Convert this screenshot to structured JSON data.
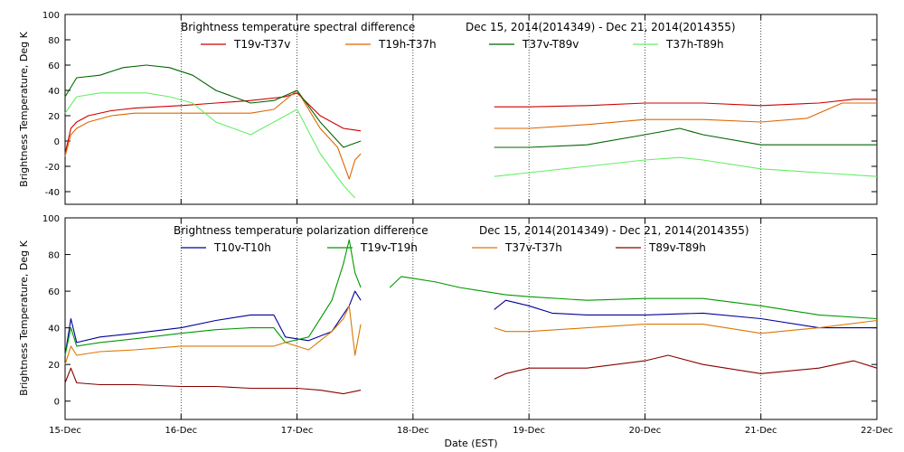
{
  "chart_data": [
    {
      "type": "line",
      "title": "Brightness temperature spectral difference",
      "date_range": "Dec 15, 2014(2014349) - Dec 21, 2014(2014355)",
      "ylabel": "Brightness Temperature, Deg K",
      "xlabel": "",
      "ylim": [
        -50,
        100
      ],
      "yticks": [
        -40,
        -20,
        0,
        20,
        40,
        60,
        80,
        100
      ],
      "xlim": [
        15,
        22
      ],
      "grid": "vertical dotted at day boundaries",
      "legend_placement": "top",
      "series": [
        {
          "name": "T19v-T37v",
          "color": "#cc0000",
          "x": [
            15.0,
            15.05,
            15.1,
            15.2,
            15.4,
            15.6,
            15.8,
            16.0,
            16.3,
            16.6,
            16.9,
            17.0,
            17.2,
            17.4,
            17.55
          ],
          "y": [
            -10,
            10,
            15,
            20,
            24,
            26,
            27,
            28,
            30,
            32,
            35,
            38,
            20,
            10,
            8
          ]
        },
        {
          "name": "T19h-T37h",
          "color": "#dd6600",
          "x": [
            15.0,
            15.05,
            15.1,
            15.2,
            15.4,
            15.6,
            15.8,
            16.0,
            16.3,
            16.6,
            16.8,
            17.0,
            17.2,
            17.35,
            17.45,
            17.5,
            17.55
          ],
          "y": [
            -12,
            5,
            10,
            15,
            20,
            22,
            22,
            22,
            22,
            22,
            25,
            40,
            10,
            -5,
            -30,
            -15,
            -10
          ]
        },
        {
          "name": "T37v-T89v",
          "color": "#006600",
          "x": [
            15.0,
            15.1,
            15.3,
            15.5,
            15.7,
            15.9,
            16.1,
            16.3,
            16.6,
            16.8,
            17.0,
            17.2,
            17.4,
            17.55
          ],
          "y": [
            35,
            50,
            52,
            58,
            60,
            58,
            52,
            40,
            30,
            32,
            40,
            15,
            -5,
            0
          ]
        },
        {
          "name": "T37h-T89h",
          "color": "#66ee66",
          "x": [
            15.0,
            15.1,
            15.3,
            15.5,
            15.7,
            15.9,
            16.1,
            16.3,
            16.6,
            16.8,
            17.0,
            17.2,
            17.4,
            17.5
          ],
          "y": [
            22,
            35,
            38,
            38,
            38,
            35,
            30,
            15,
            5,
            15,
            25,
            -10,
            -35,
            -45
          ]
        },
        {
          "name": "T19v-T37v",
          "color": "#cc0000",
          "x": [
            18.7,
            19.0,
            19.5,
            20.0,
            20.5,
            21.0,
            21.5,
            21.8,
            22.0
          ],
          "y": [
            27,
            27,
            28,
            30,
            30,
            28,
            30,
            33,
            33
          ]
        },
        {
          "name": "T19h-T37h",
          "color": "#dd6600",
          "x": [
            18.7,
            19.0,
            19.5,
            20.0,
            20.5,
            21.0,
            21.4,
            21.7,
            22.0
          ],
          "y": [
            10,
            10,
            13,
            17,
            17,
            15,
            18,
            30,
            30
          ]
        },
        {
          "name": "T37v-T89v",
          "color": "#006600",
          "x": [
            18.7,
            19.0,
            19.5,
            20.0,
            20.3,
            20.5,
            21.0,
            21.5,
            22.0
          ],
          "y": [
            -5,
            -5,
            -3,
            5,
            10,
            5,
            -3,
            -3,
            -3
          ]
        },
        {
          "name": "T37h-T89h",
          "color": "#66ee66",
          "x": [
            18.7,
            19.0,
            19.5,
            20.0,
            20.3,
            20.5,
            21.0,
            21.5,
            22.0
          ],
          "y": [
            -28,
            -25,
            -20,
            -15,
            -13,
            -15,
            -22,
            -25,
            -28
          ]
        }
      ]
    },
    {
      "type": "line",
      "title": "Brightness temperature polarization difference",
      "date_range": "Dec 15, 2014(2014349) - Dec 21, 2014(2014355)",
      "ylabel": "Brightness Temperature, Deg K",
      "xlabel": "Date (EST)",
      "ylim": [
        -10,
        100
      ],
      "yticks": [
        0,
        20,
        40,
        60,
        80,
        100
      ],
      "xlim": [
        15,
        22
      ],
      "xticks": [
        "15-Dec",
        "16-Dec",
        "17-Dec",
        "18-Dec",
        "19-Dec",
        "20-Dec",
        "21-Dec",
        "22-Dec"
      ],
      "grid": "vertical dotted at day boundaries",
      "legend_placement": "top",
      "series": [
        {
          "name": "T10v-T10h",
          "color": "#000099",
          "x": [
            15.0,
            15.05,
            15.1,
            15.3,
            15.6,
            16.0,
            16.3,
            16.6,
            16.8,
            16.9,
            17.1,
            17.3,
            17.45,
            17.5,
            17.55
          ],
          "y": [
            25,
            45,
            32,
            35,
            37,
            40,
            44,
            47,
            47,
            35,
            33,
            38,
            52,
            60,
            55
          ]
        },
        {
          "name": "T19v-T19h",
          "color": "#009900",
          "x": [
            15.0,
            15.05,
            15.1,
            15.3,
            15.6,
            16.0,
            16.3,
            16.6,
            16.8,
            16.9,
            17.1,
            17.3,
            17.4,
            17.45,
            17.5,
            17.55
          ],
          "y": [
            25,
            40,
            30,
            32,
            34,
            37,
            39,
            40,
            40,
            32,
            35,
            55,
            75,
            88,
            70,
            62
          ]
        },
        {
          "name": "T37v-T37h",
          "color": "#dd7700",
          "x": [
            15.0,
            15.05,
            15.1,
            15.3,
            15.6,
            16.0,
            16.3,
            16.6,
            16.8,
            16.9,
            17.1,
            17.3,
            17.4,
            17.45,
            17.5,
            17.55
          ],
          "y": [
            20,
            30,
            25,
            27,
            28,
            30,
            30,
            30,
            30,
            32,
            28,
            38,
            45,
            52,
            25,
            42
          ]
        },
        {
          "name": "T89v-T89h",
          "color": "#880000",
          "x": [
            15.0,
            15.05,
            15.1,
            15.3,
            15.6,
            16.0,
            16.3,
            16.6,
            16.8,
            17.0,
            17.2,
            17.4,
            17.55
          ],
          "y": [
            10,
            18,
            10,
            9,
            9,
            8,
            8,
            7,
            7,
            7,
            6,
            4,
            6
          ]
        },
        {
          "name": "T19v-T19h",
          "color": "#009900",
          "x": [
            17.8,
            17.9,
            18.0,
            18.2,
            18.4,
            18.6,
            18.8,
            19.0,
            19.5,
            20.0,
            20.5,
            21.0,
            21.5,
            22.0
          ],
          "y": [
            62,
            68,
            67,
            65,
            62,
            60,
            58,
            57,
            55,
            56,
            56,
            52,
            47,
            45
          ]
        },
        {
          "name": "T10v-T10h",
          "color": "#000099",
          "x": [
            18.7,
            18.8,
            19.0,
            19.2,
            19.5,
            20.0,
            20.5,
            21.0,
            21.5,
            22.0
          ],
          "y": [
            50,
            55,
            52,
            48,
            47,
            47,
            48,
            45,
            40,
            40
          ]
        },
        {
          "name": "T37v-T37h",
          "color": "#dd7700",
          "x": [
            18.7,
            18.8,
            19.0,
            19.5,
            20.0,
            20.5,
            21.0,
            21.5,
            22.0
          ],
          "y": [
            40,
            38,
            38,
            40,
            42,
            42,
            37,
            40,
            44
          ]
        },
        {
          "name": "T89v-T89h",
          "color": "#880000",
          "x": [
            18.7,
            18.8,
            19.0,
            19.5,
            20.0,
            20.2,
            20.5,
            21.0,
            21.5,
            21.8,
            22.0
          ],
          "y": [
            12,
            15,
            18,
            18,
            22,
            25,
            20,
            15,
            18,
            22,
            18
          ]
        }
      ]
    }
  ],
  "ui": {
    "panels": [
      {
        "title": "Brightness temperature spectral difference",
        "date_range": "Dec 15, 2014(2014349) - Dec 21, 2014(2014355)",
        "ylabel": "Brightness Temperature, Deg K",
        "legend": [
          "T19v-T37v",
          "T19h-T37h",
          "T37v-T89v",
          "T37h-T89h"
        ],
        "legend_colors": [
          "#cc0000",
          "#dd6600",
          "#006600",
          "#66ee66"
        ]
      },
      {
        "title": "Brightness temperature polarization difference",
        "date_range": "Dec 15, 2014(2014349) - Dec 21, 2014(2014355)",
        "ylabel": "Brightness Temperature, Deg K",
        "legend": [
          "T10v-T10h",
          "T19v-T19h",
          "T37v-T37h",
          "T89v-T89h"
        ],
        "legend_colors": [
          "#000099",
          "#009900",
          "#dd7700",
          "#880000"
        ]
      }
    ],
    "xlabel": "Date (EST)"
  }
}
